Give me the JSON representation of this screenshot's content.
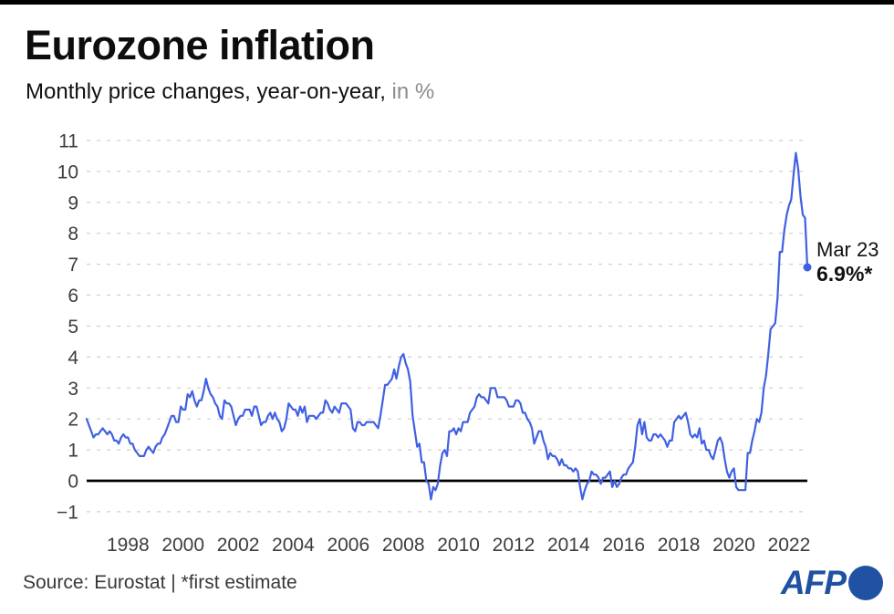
{
  "header": {
    "title": "Eurozone inflation",
    "subtitle": "Monthly price changes, year-on-year,",
    "subtitle_unit": "in %"
  },
  "annotation": {
    "label": "Mar 23",
    "value": "6.9%*"
  },
  "footer": {
    "source": "Source: Eurostat | *first estimate",
    "logo_text": "AFP"
  },
  "colors": {
    "line": "#4060e2",
    "grid": "#cfcfcf",
    "zero_axis": "#000000",
    "tick_label": "#3d3d3d",
    "top_bar": "#000000",
    "afp_blue": "#2051a3"
  },
  "chart_data": {
    "type": "line",
    "title": "Eurozone inflation",
    "subtitle": "Monthly price changes, year-on-year, in %",
    "frequency": "monthly",
    "x_start": {
      "year": 1997,
      "month": 1
    },
    "x_end": {
      "year": 2023,
      "month": 3
    },
    "ylim": [
      -1,
      11
    ],
    "yticks": [
      -1,
      0,
      1,
      2,
      3,
      4,
      5,
      6,
      7,
      8,
      9,
      10,
      11
    ],
    "xticks": [
      1998,
      2000,
      2002,
      2004,
      2006,
      2008,
      2010,
      2012,
      2014,
      2016,
      2018,
      2020,
      2022
    ],
    "grid": "dashed horizontal gridlines, solid black zero axis",
    "legend": "none",
    "last_point": {
      "label": "Mar 23",
      "value": 6.9,
      "note": "first estimate"
    },
    "series": [
      {
        "name": "Eurozone inflation, % year-on-year",
        "values": [
          2.0,
          1.8,
          1.6,
          1.4,
          1.5,
          1.5,
          1.6,
          1.7,
          1.6,
          1.5,
          1.6,
          1.5,
          1.3,
          1.3,
          1.2,
          1.4,
          1.5,
          1.4,
          1.4,
          1.2,
          1.2,
          1.0,
          0.9,
          0.8,
          0.8,
          0.8,
          1.0,
          1.1,
          1.0,
          0.9,
          1.1,
          1.2,
          1.2,
          1.4,
          1.5,
          1.7,
          1.9,
          2.1,
          2.1,
          1.9,
          1.9,
          2.4,
          2.3,
          2.3,
          2.8,
          2.7,
          2.9,
          2.6,
          2.4,
          2.6,
          2.6,
          2.9,
          3.3,
          3.0,
          2.8,
          2.7,
          2.5,
          2.4,
          2.1,
          2.0,
          2.6,
          2.5,
          2.5,
          2.4,
          2.1,
          1.8,
          2.0,
          2.1,
          2.1,
          2.3,
          2.3,
          2.3,
          2.1,
          2.4,
          2.4,
          2.1,
          1.8,
          1.9,
          1.9,
          2.1,
          2.2,
          2.0,
          2.2,
          2.0,
          1.9,
          1.6,
          1.7,
          2.0,
          2.5,
          2.4,
          2.3,
          2.3,
          2.1,
          2.4,
          2.2,
          2.4,
          1.9,
          2.1,
          2.1,
          2.1,
          2.0,
          2.1,
          2.2,
          2.2,
          2.6,
          2.5,
          2.3,
          2.2,
          2.4,
          2.3,
          2.2,
          2.5,
          2.5,
          2.5,
          2.4,
          2.3,
          1.7,
          1.6,
          1.9,
          1.9,
          1.8,
          1.8,
          1.9,
          1.9,
          1.9,
          1.9,
          1.8,
          1.7,
          2.1,
          2.6,
          3.1,
          3.1,
          3.2,
          3.3,
          3.6,
          3.3,
          3.7,
          4.0,
          4.1,
          3.8,
          3.6,
          3.2,
          2.1,
          1.6,
          1.1,
          1.2,
          0.6,
          0.6,
          0.0,
          -0.1,
          -0.6,
          -0.2,
          -0.3,
          -0.1,
          0.5,
          0.9,
          1.0,
          0.8,
          1.6,
          1.6,
          1.7,
          1.5,
          1.7,
          1.6,
          1.9,
          1.9,
          1.9,
          2.2,
          2.3,
          2.4,
          2.7,
          2.8,
          2.7,
          2.7,
          2.6,
          2.5,
          3.0,
          3.0,
          3.0,
          2.7,
          2.7,
          2.7,
          2.7,
          2.6,
          2.4,
          2.4,
          2.4,
          2.6,
          2.6,
          2.5,
          2.2,
          2.2,
          2.0,
          1.9,
          1.7,
          1.2,
          1.4,
          1.6,
          1.6,
          1.3,
          1.1,
          0.7,
          0.9,
          0.8,
          0.8,
          0.7,
          0.5,
          0.7,
          0.5,
          0.5,
          0.4,
          0.4,
          0.3,
          0.4,
          0.3,
          -0.2,
          -0.6,
          -0.3,
          -0.1,
          0.0,
          0.3,
          0.2,
          0.2,
          0.1,
          -0.1,
          0.1,
          0.1,
          0.2,
          0.3,
          -0.2,
          0.0,
          -0.2,
          -0.1,
          0.1,
          0.2,
          0.2,
          0.4,
          0.5,
          0.6,
          1.1,
          1.8,
          2.0,
          1.5,
          1.9,
          1.4,
          1.3,
          1.3,
          1.5,
          1.5,
          1.4,
          1.5,
          1.4,
          1.3,
          1.1,
          1.3,
          1.3,
          1.9,
          2.0,
          2.1,
          2.0,
          2.1,
          2.2,
          1.9,
          1.5,
          1.4,
          1.5,
          1.4,
          1.7,
          1.2,
          1.3,
          1.0,
          1.0,
          0.8,
          0.7,
          1.0,
          1.3,
          1.4,
          1.2,
          0.7,
          0.3,
          0.1,
          0.3,
          0.4,
          -0.2,
          -0.3,
          -0.3,
          -0.3,
          -0.3,
          0.9,
          0.9,
          1.3,
          1.6,
          2.0,
          1.9,
          2.2,
          3.0,
          3.4,
          4.1,
          4.9,
          5.0,
          5.1,
          5.9,
          7.4,
          7.4,
          8.1,
          8.6,
          8.9,
          9.1,
          9.9,
          10.6,
          10.1,
          9.2,
          8.6,
          8.5,
          6.9
        ]
      }
    ]
  }
}
